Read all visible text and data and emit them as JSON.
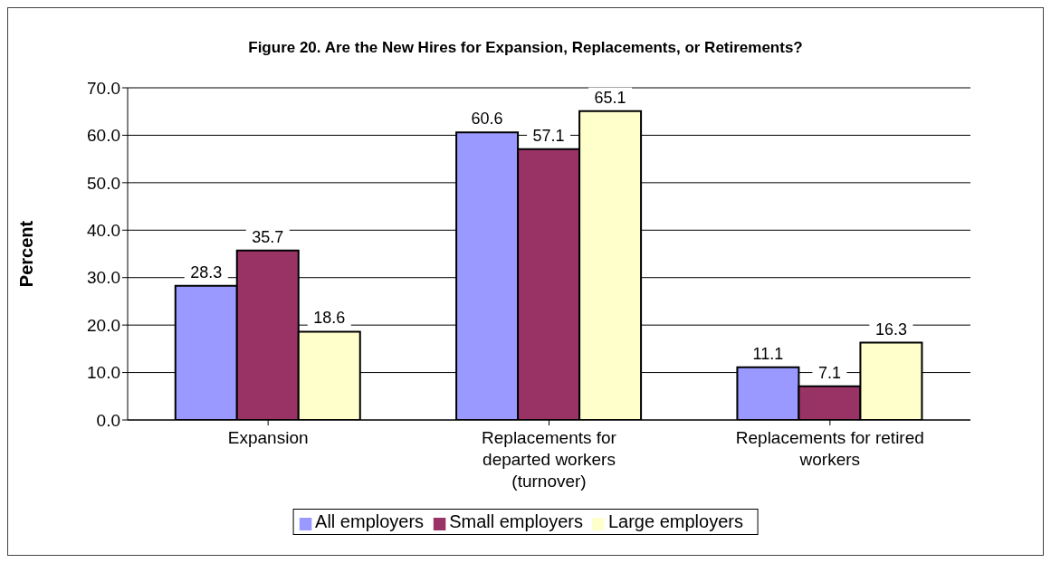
{
  "chart_data": {
    "type": "bar",
    "title": "Figure 20. Are the New Hires for Expansion, Replacements, or Retirements?",
    "ylabel": "Percent",
    "categories": [
      "Expansion",
      "Replacements for departed workers (turnover)",
      "Replacements for retired workers"
    ],
    "series": [
      {
        "name": "All employers",
        "color": "#9999ff",
        "values": [
          28.3,
          60.6,
          11.1
        ]
      },
      {
        "name": "Small employers",
        "color": "#993366",
        "values": [
          35.7,
          57.1,
          7.1
        ]
      },
      {
        "name": "Large employers",
        "color": "#ffffcc",
        "values": [
          18.6,
          65.1,
          16.3
        ]
      }
    ],
    "ylim": [
      0,
      70
    ],
    "yticks": [
      {
        "value": 0,
        "label": "0.0"
      },
      {
        "value": 10,
        "label": "10.0"
      },
      {
        "value": 20,
        "label": "20.0"
      },
      {
        "value": 30,
        "label": "30.0"
      },
      {
        "value": 40,
        "label": "40.0"
      },
      {
        "value": 50,
        "label": "50.0"
      },
      {
        "value": 60,
        "label": "60.0"
      },
      {
        "value": 70,
        "label": "70.0"
      }
    ],
    "grid": "y",
    "legend": "bottom",
    "data_labels": true
  }
}
